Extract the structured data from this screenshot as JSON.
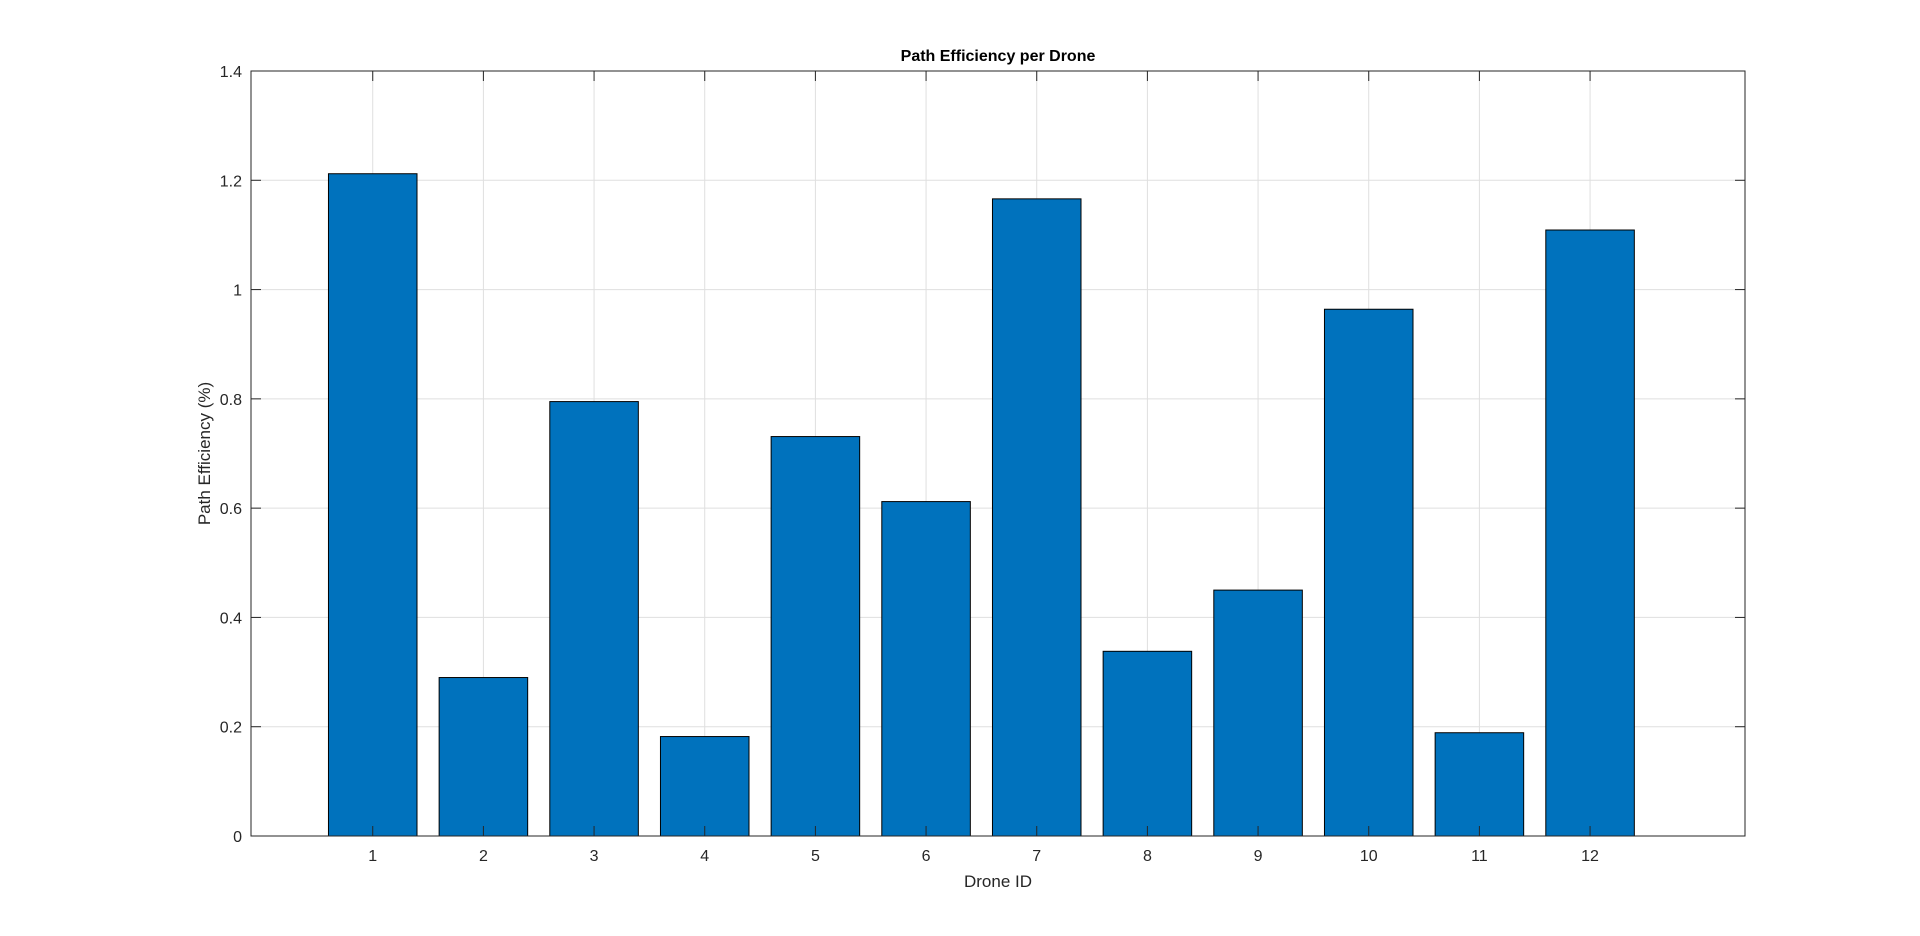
{
  "chart_data": {
    "type": "bar",
    "title": "Path Efficiency per Drone",
    "xlabel": "Drone ID",
    "ylabel": "Path Efficiency (%)",
    "categories": [
      "1",
      "2",
      "3",
      "4",
      "5",
      "6",
      "7",
      "8",
      "9",
      "10",
      "11",
      "12"
    ],
    "values": [
      1.212,
      0.29,
      0.795,
      0.182,
      0.731,
      0.612,
      1.166,
      0.338,
      0.45,
      0.964,
      0.189,
      1.109
    ],
    "ylim": [
      0,
      1.4
    ],
    "xlim": [
      -0.1,
      13.4
    ],
    "yticks": [
      0,
      0.2,
      0.4,
      0.6,
      0.8,
      1.0,
      1.2,
      1.4
    ],
    "ytick_labels": [
      "0",
      "0.2",
      "0.4",
      "0.6",
      "0.8",
      "1",
      "1.2",
      "1.4"
    ],
    "grid": true,
    "box": true,
    "bar_color": "#0072BD",
    "edge_color": "#000000",
    "grid_color": "#DFDFDF",
    "axis_color": "#262626"
  }
}
